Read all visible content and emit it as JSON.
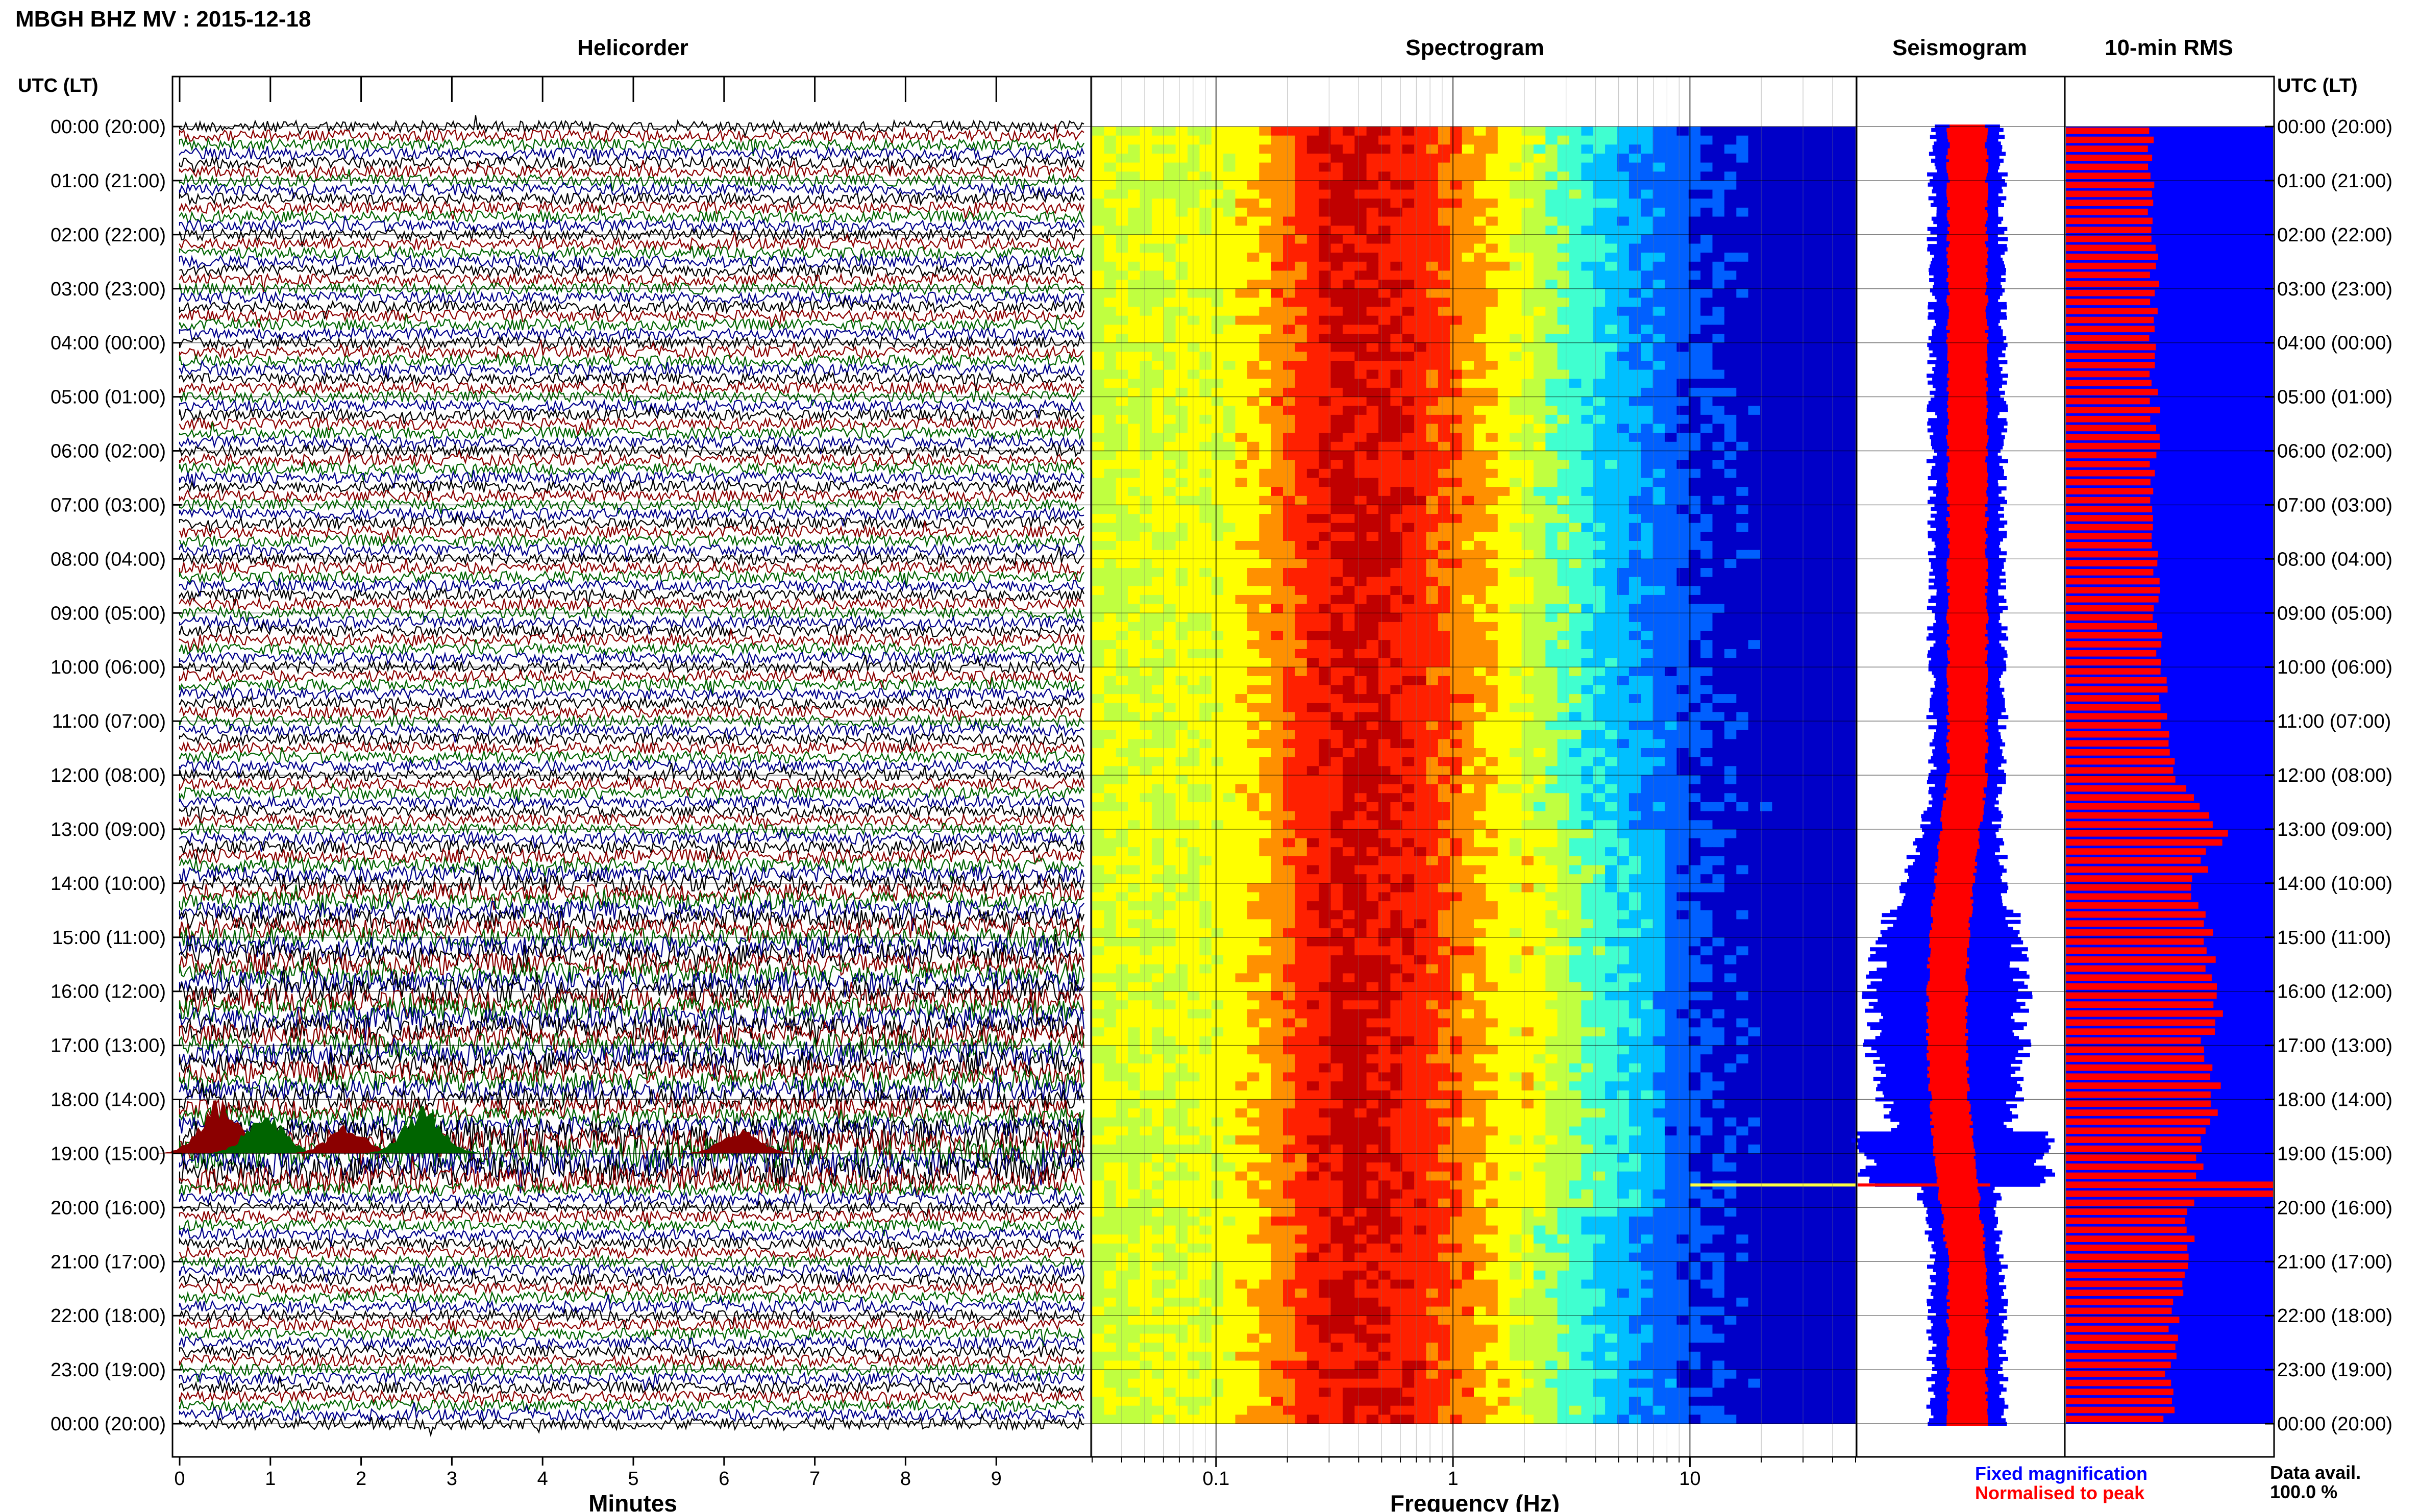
{
  "header": {
    "title": "MBGH BHZ MV : 2015-12-18"
  },
  "panels": {
    "helicorder": "Helicorder",
    "spectrogram": "Spectrogram",
    "seismogram": "Seismogram",
    "rms": "10-min RMS"
  },
  "axis": {
    "left_title": "UTC (LT)",
    "right_title": "UTC (LT)",
    "time_labels": [
      "00:00 (20:00)",
      "01:00 (21:00)",
      "02:00 (22:00)",
      "03:00 (23:00)",
      "04:00 (00:00)",
      "05:00 (01:00)",
      "06:00 (02:00)",
      "07:00 (03:00)",
      "08:00 (04:00)",
      "09:00 (05:00)",
      "10:00 (06:00)",
      "11:00 (07:00)",
      "12:00 (08:00)",
      "13:00 (09:00)",
      "14:00 (10:00)",
      "15:00 (11:00)",
      "16:00 (12:00)",
      "17:00 (13:00)",
      "18:00 (14:00)",
      "19:00 (15:00)",
      "20:00 (16:00)",
      "21:00 (17:00)",
      "22:00 (18:00)",
      "23:00 (19:00)",
      "00:00 (20:00)"
    ],
    "minutes_label": "Minutes",
    "minute_ticks": [
      "0",
      "1",
      "2",
      "3",
      "4",
      "5",
      "6",
      "7",
      "8",
      "9"
    ],
    "frequency_label": "Frequency (Hz)",
    "frequency_ticks": [
      "0.1",
      "1",
      "10"
    ]
  },
  "legend": {
    "fixed": "Fixed magnification",
    "normalised": "Normalised to peak",
    "fixed_color": "#0000ff",
    "normalised_color": "#ff0000"
  },
  "availability": {
    "label": "Data avail.",
    "value": "100.0 %"
  },
  "colors": {
    "helicorder_traces": [
      "#000000",
      "#8b0000",
      "#006400",
      "#00008b"
    ],
    "spectrogram_scale": [
      "#0000c8",
      "#0060ff",
      "#00c0ff",
      "#40ffd0",
      "#c0ff40",
      "#ffff00",
      "#ff9000",
      "#ff2000",
      "#c00000"
    ],
    "rms_fixed": "#0000ff",
    "rms_normalised": "#ff0000"
  },
  "chart_data": {
    "type": "heatmap",
    "title": "MBGH BHZ MV : 2015-12-18",
    "xlabel": "Frequency (Hz)",
    "x_scale": "log",
    "xlim": [
      0.03,
      50
    ],
    "ylabel": "UTC (LT)",
    "ylim": [
      "00:00",
      "24:00"
    ],
    "spectral_peak_hz": 0.35,
    "helicorder": {
      "xlabel": "Minutes",
      "xlim": [
        0,
        10
      ],
      "lines_per_hour": 6,
      "active_hours": [
        13,
        20
      ]
    },
    "rms_10min_fixed_by_hour": [
      0.42,
      0.42,
      0.42,
      0.43,
      0.42,
      0.43,
      0.43,
      0.43,
      0.43,
      0.44,
      0.46,
      0.48,
      0.52,
      0.75,
      0.62,
      0.68,
      0.75,
      0.68,
      0.72,
      0.66,
      0.62,
      0.56,
      0.53,
      0.5,
      0.5
    ],
    "rms_spike_time": "19:35",
    "data_availability_percent": 100.0
  }
}
